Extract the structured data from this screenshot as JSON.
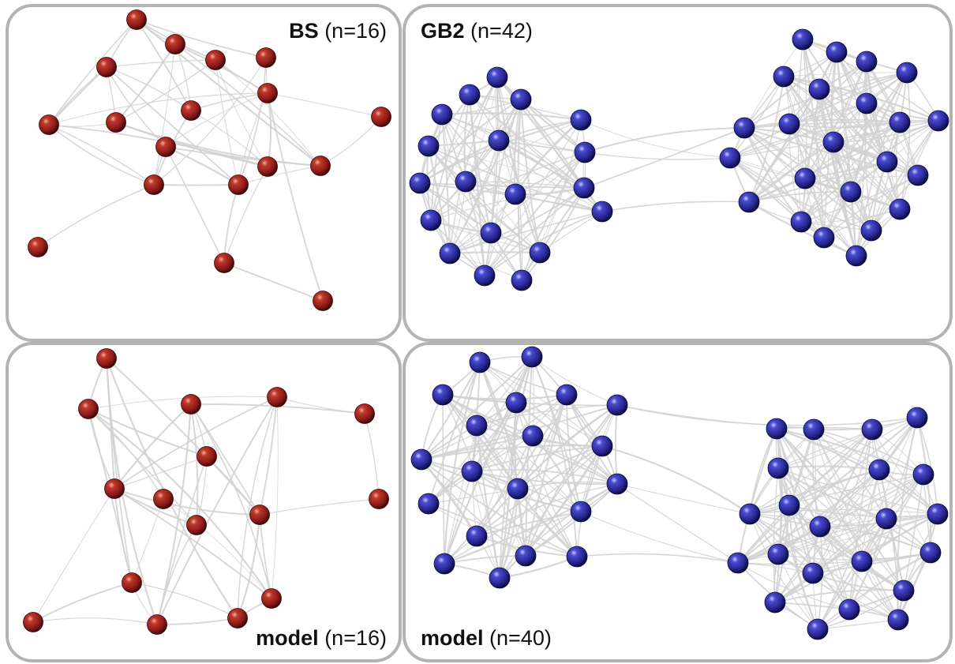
{
  "colors": {
    "red_node": "#8b1a1a",
    "blue_node": "#26268f",
    "edge": "#d2d2d2",
    "border": "#b3b3b3"
  },
  "panels": [
    {
      "id": "bs",
      "name": "BS",
      "count": "(n=16)",
      "node_color": "red"
    },
    {
      "id": "gb2",
      "name": "GB2",
      "count": "(n=42)",
      "node_color": "blue"
    },
    {
      "id": "model_bs",
      "name": "model",
      "count": "(n=16)",
      "node_color": "red"
    },
    {
      "id": "model_gb2",
      "name": "model",
      "count": "(n=40)",
      "node_color": "blue"
    }
  ]
}
